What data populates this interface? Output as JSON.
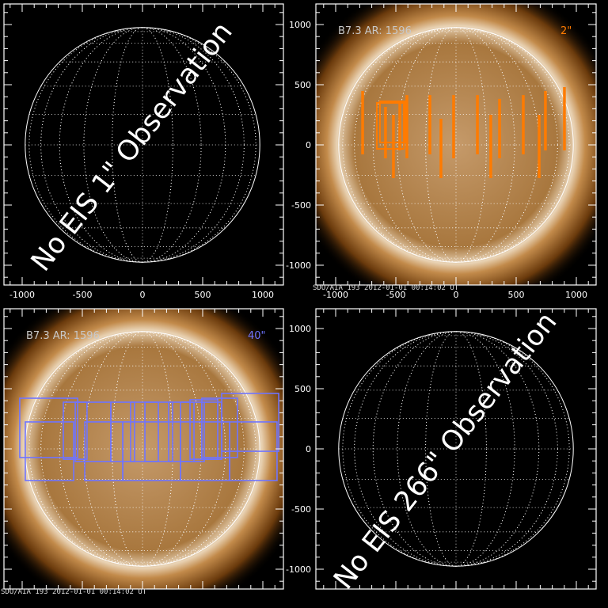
{
  "panels": [
    {
      "id": "tl",
      "type": "empty",
      "message": "No EIS 1\" Observation",
      "x_ticks": [
        "-1000",
        "-500",
        "0",
        "500",
        "1000"
      ],
      "y_ticks": []
    },
    {
      "id": "tr",
      "type": "image",
      "label": "B7.3 AR: 1596",
      "scale_label": "2\"",
      "overlay_color": "#ff7b00",
      "caption": "SDO/AIA 193 2012-01-01 00:14:02 UT",
      "x_ticks": [
        "-1000",
        "-500",
        "0",
        "500",
        "1000"
      ],
      "y_ticks": [
        "1000",
        "500",
        "0",
        "-500",
        "-1000"
      ],
      "slits": [
        [
          -776,
          447,
          -79
        ],
        [
          -586,
          316,
          -112
        ],
        [
          -520,
          250,
          -276
        ],
        [
          -467,
          349,
          -46
        ],
        [
          -408,
          414,
          -112
        ],
        [
          -217,
          414,
          -79
        ],
        [
          -125,
          217,
          -276
        ],
        [
          -20,
          414,
          -112
        ],
        [
          178,
          414,
          -79
        ],
        [
          289,
          250,
          -276
        ],
        [
          362,
          382,
          -112
        ],
        [
          559,
          414,
          -79
        ],
        [
          691,
          250,
          -276
        ],
        [
          743,
          447,
          -46
        ],
        [
          901,
          480,
          -46
        ]
      ],
      "boxes": [
        [
          -658,
          349,
          -434,
          -33
        ],
        [
          -632,
          362,
          -421,
          20
        ]
      ]
    },
    {
      "id": "bl",
      "type": "image",
      "label": "B7.3 AR: 1596",
      "scale_label": "40\"",
      "overlay_color": "#6f74ff",
      "caption": "SDO/AIA 193 2012-01-01 00:14:02 UT",
      "x_ticks": [],
      "y_ticks": [],
      "boxes": [
        [
          -1020,
          421,
          -539,
          -72
        ],
        [
          -974,
          224,
          -572,
          -263
        ],
        [
          -658,
          388,
          -461,
          -86
        ],
        [
          -559,
          388,
          -263,
          -105
        ],
        [
          -480,
          224,
          -164,
          -263
        ],
        [
          -263,
          388,
          -66,
          -105
        ],
        [
          -164,
          224,
          316,
          -263
        ],
        [
          -99,
          388,
          132,
          -105
        ],
        [
          20,
          388,
          250,
          -105
        ],
        [
          217,
          388,
          428,
          -105
        ],
        [
          316,
          224,
          724,
          -263
        ],
        [
          316,
          388,
          513,
          -105
        ],
        [
          395,
          408,
          625,
          -86
        ],
        [
          493,
          421,
          789,
          -72
        ],
        [
          658,
          461,
          1132,
          -20
        ],
        [
          724,
          224,
          1118,
          -263
        ],
        [
          493,
          388,
          658,
          -86
        ]
      ]
    },
    {
      "id": "br",
      "type": "empty",
      "message": "No EIS 266\" Observation",
      "x_ticks": [],
      "y_ticks": [
        "1000",
        "500",
        "0",
        "-500",
        "-1000"
      ]
    }
  ]
}
